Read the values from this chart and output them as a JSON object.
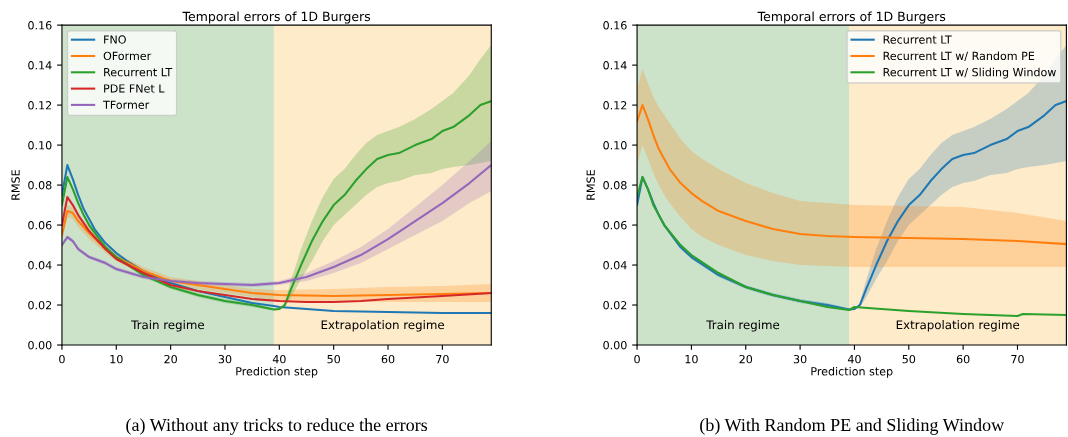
{
  "chart_data": [
    {
      "type": "line",
      "title": "Temporal errors of 1D Burgers",
      "xlabel": "Prediction step",
      "ylabel": "RMSE",
      "xlim": [
        0,
        79
      ],
      "xticks": [
        0,
        10,
        20,
        30,
        40,
        50,
        60,
        70
      ],
      "ylim": [
        0,
        0.16
      ],
      "yticks": [
        {
          "value": 0,
          "label": "0.00"
        },
        {
          "value": 0.02,
          "label": "0.02"
        },
        {
          "value": 0.04,
          "label": "0.04"
        },
        {
          "value": 0.06,
          "label": "0.06"
        },
        {
          "value": 0.08,
          "label": "0.08"
        },
        {
          "value": 0.1,
          "label": "0.10"
        },
        {
          "value": 0.12,
          "label": "0.12"
        },
        {
          "value": 0.14,
          "label": "0.14"
        },
        {
          "value": 0.16,
          "label": "0.16"
        }
      ],
      "grid": false,
      "legend": "top left",
      "bands": [
        {
          "axis": "x",
          "from": 0,
          "to": 39,
          "label": "Train regime",
          "color": "#cce3ca"
        },
        {
          "axis": "x",
          "from": 39,
          "to": 79,
          "label": "Extrapolation regime",
          "color": "#feebc9"
        }
      ],
      "annotations": [
        "(a) Without any tricks to reduce the errors"
      ],
      "series": [
        {
          "name": "FNO",
          "color": "#1f77b4",
          "x": [
            0,
            1,
            2,
            3,
            4,
            5,
            6,
            8,
            10,
            12,
            15,
            18,
            20,
            25,
            30,
            35,
            39,
            40,
            45,
            50,
            60,
            70,
            79
          ],
          "values": [
            0.075,
            0.09,
            0.083,
            0.075,
            0.068,
            0.063,
            0.058,
            0.051,
            0.046,
            0.042,
            0.037,
            0.033,
            0.031,
            0.027,
            0.024,
            0.021,
            0.0195,
            0.019,
            0.018,
            0.017,
            0.0165,
            0.016,
            0.016
          ]
        },
        {
          "name": "OFormer",
          "color": "#ff7f0e",
          "x": [
            0,
            1,
            2,
            3,
            5,
            8,
            10,
            15,
            20,
            25,
            30,
            35,
            40,
            50,
            60,
            70,
            79
          ],
          "values": [
            0.055,
            0.067,
            0.066,
            0.062,
            0.056,
            0.048,
            0.044,
            0.037,
            0.032,
            0.03,
            0.028,
            0.026,
            0.025,
            0.0245,
            0.025,
            0.0255,
            0.026
          ],
          "lower": [
            0.052,
            0.064,
            0.063,
            0.059,
            0.053,
            0.046,
            0.042,
            0.035,
            0.03,
            0.028,
            0.026,
            0.024,
            0.0225,
            0.0215,
            0.0215,
            0.0215,
            0.0215
          ],
          "upper": [
            0.058,
            0.07,
            0.069,
            0.065,
            0.059,
            0.05,
            0.046,
            0.039,
            0.034,
            0.032,
            0.03,
            0.028,
            0.0275,
            0.028,
            0.029,
            0.0295,
            0.0305
          ]
        },
        {
          "name": "Recurrent LT",
          "color": "#2ca02c",
          "x": [
            0,
            1,
            2,
            3,
            4,
            5,
            8,
            10,
            15,
            20,
            25,
            30,
            35,
            39,
            40,
            41,
            42,
            44,
            46,
            48,
            50,
            52,
            54,
            56,
            58,
            60,
            62,
            65,
            68,
            70,
            72,
            75,
            77,
            79
          ],
          "values": [
            0.07,
            0.084,
            0.078,
            0.071,
            0.065,
            0.06,
            0.049,
            0.044,
            0.035,
            0.029,
            0.025,
            0.022,
            0.02,
            0.0178,
            0.018,
            0.02,
            0.027,
            0.04,
            0.052,
            0.062,
            0.07,
            0.075,
            0.082,
            0.088,
            0.093,
            0.095,
            0.096,
            0.1,
            0.103,
            0.107,
            0.109,
            0.115,
            0.12,
            0.122
          ],
          "lower": [
            0.069,
            0.083,
            0.077,
            0.07,
            0.064,
            0.059,
            0.048,
            0.043,
            0.034,
            0.028,
            0.024,
            0.021,
            0.019,
            0.0172,
            0.0175,
            0.019,
            0.023,
            0.033,
            0.042,
            0.052,
            0.06,
            0.065,
            0.07,
            0.075,
            0.079,
            0.081,
            0.082,
            0.085,
            0.086,
            0.088,
            0.089,
            0.09,
            0.091,
            0.092
          ],
          "upper": [
            0.071,
            0.085,
            0.079,
            0.072,
            0.066,
            0.061,
            0.05,
            0.045,
            0.036,
            0.03,
            0.026,
            0.023,
            0.021,
            0.0184,
            0.0185,
            0.021,
            0.031,
            0.048,
            0.062,
            0.074,
            0.083,
            0.088,
            0.095,
            0.101,
            0.105,
            0.107,
            0.109,
            0.113,
            0.118,
            0.122,
            0.126,
            0.135,
            0.143,
            0.15
          ]
        },
        {
          "name": "PDE FNet L",
          "color": "#d62728",
          "x": [
            0,
            1,
            2,
            3,
            5,
            8,
            10,
            15,
            20,
            25,
            30,
            35,
            40,
            45,
            50,
            55,
            60,
            70,
            79
          ],
          "values": [
            0.06,
            0.074,
            0.07,
            0.065,
            0.057,
            0.048,
            0.043,
            0.036,
            0.03,
            0.027,
            0.025,
            0.023,
            0.022,
            0.0215,
            0.0215,
            0.022,
            0.023,
            0.0245,
            0.026
          ]
        },
        {
          "name": "TFormer",
          "color": "#9467bd",
          "x": [
            0,
            1,
            2,
            3,
            5,
            8,
            10,
            15,
            20,
            25,
            30,
            35,
            40,
            45,
            50,
            55,
            60,
            65,
            70,
            75,
            79
          ],
          "values": [
            0.05,
            0.054,
            0.052,
            0.048,
            0.044,
            0.041,
            0.038,
            0.034,
            0.032,
            0.031,
            0.0305,
            0.03,
            0.031,
            0.034,
            0.039,
            0.045,
            0.053,
            0.062,
            0.071,
            0.081,
            0.09
          ],
          "lower": [
            0.049,
            0.053,
            0.051,
            0.047,
            0.043,
            0.04,
            0.037,
            0.033,
            0.031,
            0.03,
            0.0295,
            0.029,
            0.03,
            0.032,
            0.036,
            0.041,
            0.048,
            0.055,
            0.062,
            0.071,
            0.077
          ],
          "upper": [
            0.051,
            0.055,
            0.053,
            0.049,
            0.045,
            0.042,
            0.039,
            0.035,
            0.033,
            0.032,
            0.0315,
            0.031,
            0.032,
            0.036,
            0.042,
            0.049,
            0.058,
            0.069,
            0.08,
            0.092,
            0.102
          ]
        }
      ]
    },
    {
      "type": "line",
      "title": "Temporal errors of 1D Burgers",
      "xlabel": "Prediction step",
      "ylabel": "RMSE",
      "xlim": [
        0,
        79
      ],
      "xticks": [
        0,
        10,
        20,
        30,
        40,
        50,
        60,
        70
      ],
      "ylim": [
        0,
        0.16
      ],
      "yticks": [
        {
          "value": 0,
          "label": "0.00"
        },
        {
          "value": 0.02,
          "label": "0.02"
        },
        {
          "value": 0.04,
          "label": "0.04"
        },
        {
          "value": 0.06,
          "label": "0.06"
        },
        {
          "value": 0.08,
          "label": "0.08"
        },
        {
          "value": 0.1,
          "label": "0.10"
        },
        {
          "value": 0.12,
          "label": "0.12"
        },
        {
          "value": 0.14,
          "label": "0.14"
        },
        {
          "value": 0.16,
          "label": "0.16"
        }
      ],
      "grid": false,
      "legend": "top right",
      "bands": [
        {
          "axis": "x",
          "from": 0,
          "to": 39,
          "label": "Train regime",
          "color": "#cce3ca"
        },
        {
          "axis": "x",
          "from": 39,
          "to": 79,
          "label": "Extrapolation regime",
          "color": "#feebc9"
        }
      ],
      "annotations": [
        "(b) With Random PE and Sliding Window"
      ],
      "series": [
        {
          "name": "Recurrent LT",
          "color": "#1f77b4",
          "x": [
            0,
            1,
            2,
            3,
            4,
            5,
            8,
            10,
            15,
            20,
            25,
            30,
            35,
            39,
            40,
            41,
            42,
            44,
            46,
            48,
            50,
            52,
            54,
            56,
            58,
            60,
            62,
            65,
            68,
            70,
            72,
            75,
            77,
            79
          ],
          "values": [
            0.07,
            0.084,
            0.078,
            0.071,
            0.065,
            0.06,
            0.049,
            0.044,
            0.035,
            0.029,
            0.025,
            0.022,
            0.02,
            0.0178,
            0.018,
            0.02,
            0.027,
            0.04,
            0.052,
            0.062,
            0.07,
            0.075,
            0.082,
            0.088,
            0.093,
            0.095,
            0.096,
            0.1,
            0.103,
            0.107,
            0.109,
            0.115,
            0.12,
            0.122
          ],
          "lower": [
            0.069,
            0.083,
            0.077,
            0.07,
            0.064,
            0.059,
            0.048,
            0.043,
            0.034,
            0.028,
            0.024,
            0.021,
            0.019,
            0.0172,
            0.0175,
            0.019,
            0.023,
            0.033,
            0.042,
            0.052,
            0.06,
            0.065,
            0.07,
            0.075,
            0.079,
            0.081,
            0.082,
            0.085,
            0.086,
            0.088,
            0.089,
            0.09,
            0.091,
            0.092
          ],
          "upper": [
            0.071,
            0.085,
            0.079,
            0.072,
            0.066,
            0.061,
            0.05,
            0.045,
            0.036,
            0.03,
            0.026,
            0.023,
            0.021,
            0.0184,
            0.0185,
            0.021,
            0.031,
            0.048,
            0.062,
            0.074,
            0.083,
            0.088,
            0.095,
            0.101,
            0.105,
            0.107,
            0.109,
            0.113,
            0.118,
            0.122,
            0.126,
            0.135,
            0.143,
            0.15
          ]
        },
        {
          "name": "Recurrent LT w/ Random PE",
          "color": "#ff7f0e",
          "x": [
            0,
            1,
            2,
            3,
            4,
            5,
            6,
            8,
            10,
            12,
            15,
            20,
            25,
            30,
            35,
            40,
            50,
            60,
            70,
            79
          ],
          "values": [
            0.112,
            0.12,
            0.113,
            0.105,
            0.098,
            0.093,
            0.088,
            0.081,
            0.076,
            0.072,
            0.067,
            0.062,
            0.058,
            0.0555,
            0.0545,
            0.054,
            0.0535,
            0.053,
            0.052,
            0.0505
          ],
          "lower": [
            0.09,
            0.1,
            0.093,
            0.086,
            0.08,
            0.075,
            0.071,
            0.064,
            0.058,
            0.054,
            0.05,
            0.045,
            0.042,
            0.04,
            0.0395,
            0.039,
            0.039,
            0.039,
            0.039,
            0.039
          ],
          "upper": [
            0.128,
            0.138,
            0.131,
            0.124,
            0.119,
            0.115,
            0.111,
            0.103,
            0.097,
            0.093,
            0.088,
            0.081,
            0.076,
            0.072,
            0.071,
            0.07,
            0.0695,
            0.069,
            0.066,
            0.062
          ]
        },
        {
          "name": "Recurrent LT w/ Sliding Window",
          "color": "#2ca02c",
          "x": [
            0,
            1,
            2,
            3,
            5,
            8,
            10,
            15,
            20,
            25,
            30,
            35,
            39,
            40,
            50,
            60,
            70,
            71,
            79
          ],
          "values": [
            0.074,
            0.084,
            0.078,
            0.07,
            0.06,
            0.05,
            0.045,
            0.036,
            0.029,
            0.025,
            0.022,
            0.019,
            0.0175,
            0.019,
            0.017,
            0.0155,
            0.0145,
            0.0155,
            0.015
          ]
        }
      ]
    }
  ]
}
